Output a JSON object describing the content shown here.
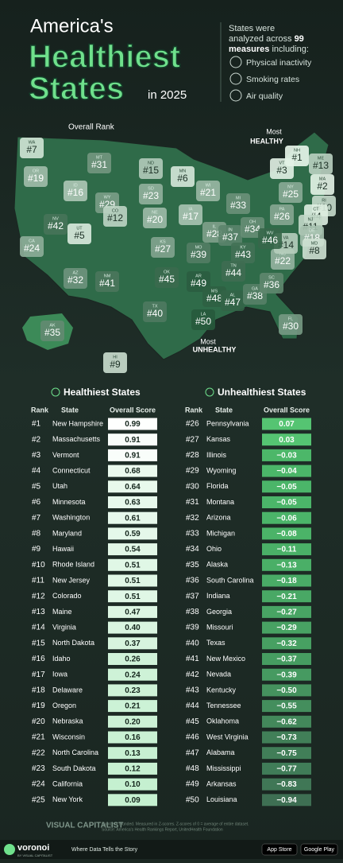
{
  "header": {
    "line1": "America's",
    "line2": "Healthiest",
    "line3": "States",
    "line4": "in 2025"
  },
  "intro": {
    "text1": "States were",
    "text2": "analyzed across",
    "count": "99",
    "text3": "measures",
    "text4": "including:"
  },
  "measures": [
    "Physical inactivity",
    "Smoking rates",
    "Air quality"
  ],
  "map": {
    "legend": "Overall Rank",
    "most_healthy": [
      "Most",
      "HEALTHY"
    ],
    "most_unhealthy": [
      "Most",
      "UNHEALTHY"
    ],
    "states": [
      {
        "abbr": "WA",
        "rank": "#7"
      },
      {
        "abbr": "OR",
        "rank": "#19"
      },
      {
        "abbr": "CA",
        "rank": "#24"
      },
      {
        "abbr": "NV",
        "rank": "#42"
      },
      {
        "abbr": "ID",
        "rank": "#16"
      },
      {
        "abbr": "MT",
        "rank": "#31"
      },
      {
        "abbr": "WY",
        "rank": "#29"
      },
      {
        "abbr": "UT",
        "rank": "#5"
      },
      {
        "abbr": "CO",
        "rank": "#12"
      },
      {
        "abbr": "AZ",
        "rank": "#32"
      },
      {
        "abbr": "NM",
        "rank": "#41"
      },
      {
        "abbr": "ND",
        "rank": "#15"
      },
      {
        "abbr": "SD",
        "rank": "#23"
      },
      {
        "abbr": "NE",
        "rank": "#20"
      },
      {
        "abbr": "KS",
        "rank": "#27"
      },
      {
        "abbr": "OK",
        "rank": "#45"
      },
      {
        "abbr": "TX",
        "rank": "#40"
      },
      {
        "abbr": "MN",
        "rank": "#6"
      },
      {
        "abbr": "IA",
        "rank": "#17"
      },
      {
        "abbr": "MO",
        "rank": "#39"
      },
      {
        "abbr": "AR",
        "rank": "#49"
      },
      {
        "abbr": "LA",
        "rank": "#50"
      },
      {
        "abbr": "WI",
        "rank": "#21"
      },
      {
        "abbr": "IL",
        "rank": "#28"
      },
      {
        "abbr": "MI",
        "rank": "#33"
      },
      {
        "abbr": "IN",
        "rank": "#37"
      },
      {
        "abbr": "OH",
        "rank": "#34"
      },
      {
        "abbr": "KY",
        "rank": "#43"
      },
      {
        "abbr": "TN",
        "rank": "#44"
      },
      {
        "abbr": "MS",
        "rank": "#48"
      },
      {
        "abbr": "AL",
        "rank": "#47"
      },
      {
        "abbr": "GA",
        "rank": "#38"
      },
      {
        "abbr": "FL",
        "rank": "#30"
      },
      {
        "abbr": "SC",
        "rank": "#36"
      },
      {
        "abbr": "NC",
        "rank": "#22"
      },
      {
        "abbr": "VA",
        "rank": "#14"
      },
      {
        "abbr": "WV",
        "rank": "#46"
      },
      {
        "abbr": "PA",
        "rank": "#26"
      },
      {
        "abbr": "NY",
        "rank": "#25"
      },
      {
        "abbr": "ME",
        "rank": "#13"
      },
      {
        "abbr": "NH",
        "rank": "#1"
      },
      {
        "abbr": "VT",
        "rank": "#3"
      },
      {
        "abbr": "MA",
        "rank": "#2"
      },
      {
        "abbr": "RI",
        "rank": "#10"
      },
      {
        "abbr": "CT",
        "rank": "#4"
      },
      {
        "abbr": "NJ",
        "rank": "#11"
      },
      {
        "abbr": "DE",
        "rank": "#18"
      },
      {
        "abbr": "MD",
        "rank": "#8"
      },
      {
        "abbr": "AK",
        "rank": "#35"
      },
      {
        "abbr": "HI",
        "rank": "#9"
      }
    ]
  },
  "tables": [
    {
      "title": "Healthiest States",
      "headers": [
        "Rank",
        "State",
        "Overall Score"
      ],
      "rows": [
        [
          "#1",
          "New Hampshire",
          "0.99"
        ],
        [
          "#2",
          "Massachusetts",
          "0.91"
        ],
        [
          "#3",
          "Vermont",
          "0.91"
        ],
        [
          "#4",
          "Connecticut",
          "0.68"
        ],
        [
          "#5",
          "Utah",
          "0.64"
        ],
        [
          "#6",
          "Minnesota",
          "0.63"
        ],
        [
          "#7",
          "Washington",
          "0.61"
        ],
        [
          "#8",
          "Maryland",
          "0.59"
        ],
        [
          "#9",
          "Hawaii",
          "0.54"
        ],
        [
          "#10",
          "Rhode Island",
          "0.51"
        ],
        [
          "#11",
          "New Jersey",
          "0.51"
        ],
        [
          "#12",
          "Colorado",
          "0.51"
        ],
        [
          "#13",
          "Maine",
          "0.47"
        ],
        [
          "#14",
          "Virginia",
          "0.40"
        ],
        [
          "#15",
          "North Dakota",
          "0.37"
        ],
        [
          "#16",
          "Idaho",
          "0.26"
        ],
        [
          "#17",
          "Iowa",
          "0.24"
        ],
        [
          "#18",
          "Delaware",
          "0.23"
        ],
        [
          "#19",
          "Oregon",
          "0.21"
        ],
        [
          "#20",
          "Nebraska",
          "0.20"
        ],
        [
          "#21",
          "Wisconsin",
          "0.16"
        ],
        [
          "#22",
          "North Carolina",
          "0.13"
        ],
        [
          "#23",
          "South Dakota",
          "0.12"
        ],
        [
          "#24",
          "California",
          "0.10"
        ],
        [
          "#25",
          "New York",
          "0.09"
        ]
      ]
    },
    {
      "title": "Unhealthiest States",
      "headers": [
        "Rank",
        "State",
        "Overall Score"
      ],
      "rows": [
        [
          "#26",
          "Pennsylvania",
          "0.07"
        ],
        [
          "#27",
          "Kansas",
          "0.03"
        ],
        [
          "#28",
          "Illinois",
          "−0.03"
        ],
        [
          "#29",
          "Wyoming",
          "−0.04"
        ],
        [
          "#30",
          "Florida",
          "−0.05"
        ],
        [
          "#31",
          "Montana",
          "−0.05"
        ],
        [
          "#32",
          "Arizona",
          "−0.06"
        ],
        [
          "#33",
          "Michigan",
          "−0.08"
        ],
        [
          "#34",
          "Ohio",
          "−0.11"
        ],
        [
          "#35",
          "Alaska",
          "−0.13"
        ],
        [
          "#36",
          "South Carolina",
          "−0.18"
        ],
        [
          "#37",
          "Indiana",
          "−0.21"
        ],
        [
          "#38",
          "Georgia",
          "−0.27"
        ],
        [
          "#39",
          "Missouri",
          "−0.29"
        ],
        [
          "#40",
          "Texas",
          "−0.32"
        ],
        [
          "#41",
          "New Mexico",
          "−0.37"
        ],
        [
          "#42",
          "Nevada",
          "−0.39"
        ],
        [
          "#43",
          "Kentucky",
          "−0.50"
        ],
        [
          "#44",
          "Tennessee",
          "−0.55"
        ],
        [
          "#45",
          "Oklahoma",
          "−0.62"
        ],
        [
          "#46",
          "West Virginia",
          "−0.73"
        ],
        [
          "#47",
          "Alabama",
          "−0.75"
        ],
        [
          "#48",
          "Mississippi",
          "−0.77"
        ],
        [
          "#49",
          "Arkansas",
          "−0.83"
        ],
        [
          "#50",
          "Louisiana",
          "−0.94"
        ]
      ]
    }
  ],
  "footer": {
    "brand": "VISUAL CAPITALIST",
    "note": "Numbers rounded. Measured in Z-scores. Z-scores of 0 = average of entire dataset.",
    "source": "Source: America's Health Rankings Report, UnitedHealth Foundation",
    "app": "voronoi",
    "app_by": "BY VISUAL CAPITALIST",
    "tagline": "Where Data Tells the Story",
    "store1": "App Store",
    "store2": "Google Play"
  }
}
